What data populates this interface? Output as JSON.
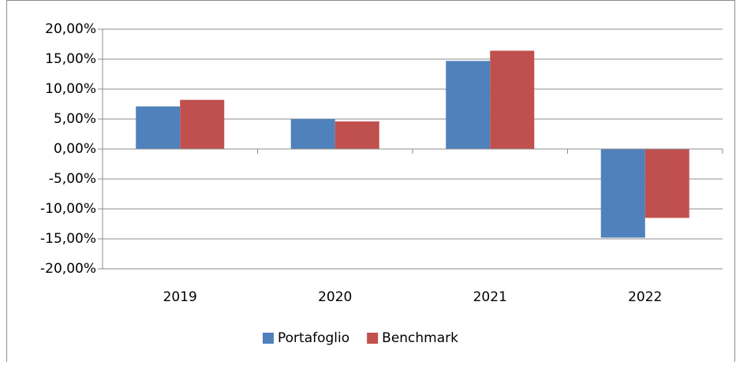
{
  "chart_data": {
    "type": "bar",
    "categories": [
      "2019",
      "2020",
      "2021",
      "2022"
    ],
    "series": [
      {
        "name": "Portafoglio",
        "color": "#4f81bd",
        "values": [
          7.1,
          5.0,
          14.7,
          -14.8
        ]
      },
      {
        "name": "Benchmark",
        "color": "#c0504d",
        "values": [
          8.2,
          4.6,
          16.4,
          -11.5
        ]
      }
    ],
    "ylim": [
      -20,
      20
    ],
    "yticks": [
      {
        "value": -20,
        "label": "-20,00%"
      },
      {
        "value": -15,
        "label": "-15,00%"
      },
      {
        "value": -10,
        "label": "-10,00%"
      },
      {
        "value": -5,
        "label": "-5,00%"
      },
      {
        "value": 0,
        "label": "0,00%"
      },
      {
        "value": 5,
        "label": "5,00%"
      },
      {
        "value": 10,
        "label": "10,00%"
      },
      {
        "value": 15,
        "label": "15,00%"
      },
      {
        "value": 20,
        "label": "20,00%"
      }
    ],
    "grid": true,
    "legend": "bottom"
  }
}
